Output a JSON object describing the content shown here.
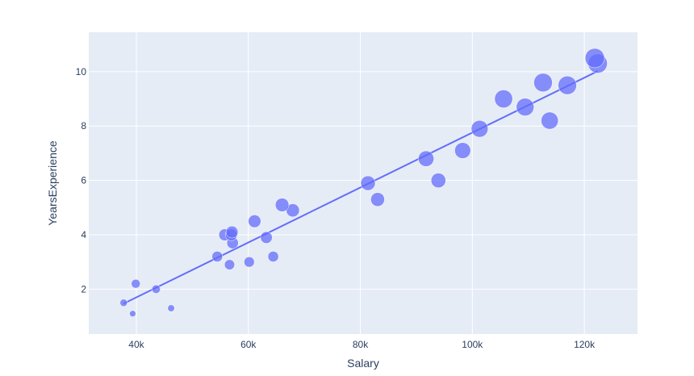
{
  "chart_data": {
    "type": "scatter",
    "title": "",
    "xlabel": "Salary",
    "ylabel": "YearsExperience",
    "xlim": [
      31500,
      129500
    ],
    "ylim": [
      0.35,
      11.45
    ],
    "x_ticks": [
      40000,
      60000,
      80000,
      100000,
      120000
    ],
    "x_tick_labels": [
      "40k",
      "60k",
      "80k",
      "100k",
      "120k"
    ],
    "y_ticks": [
      2,
      4,
      6,
      8,
      10
    ],
    "y_tick_labels": [
      "2",
      "4",
      "6",
      "8",
      "10"
    ],
    "grid": true,
    "background_color": "#e5ecf6",
    "marker_color": "#636efa",
    "marker_size_encodes": "YearsExperience",
    "points": [
      {
        "x": 39343,
        "y": 1.1
      },
      {
        "x": 46205,
        "y": 1.3
      },
      {
        "x": 37731,
        "y": 1.5
      },
      {
        "x": 43525,
        "y": 2.0
      },
      {
        "x": 39891,
        "y": 2.2
      },
      {
        "x": 56642,
        "y": 2.9
      },
      {
        "x": 60150,
        "y": 3.0
      },
      {
        "x": 54445,
        "y": 3.2
      },
      {
        "x": 64445,
        "y": 3.2
      },
      {
        "x": 57189,
        "y": 3.7
      },
      {
        "x": 63218,
        "y": 3.9
      },
      {
        "x": 55794,
        "y": 4.0
      },
      {
        "x": 56957,
        "y": 4.0
      },
      {
        "x": 57081,
        "y": 4.1
      },
      {
        "x": 61111,
        "y": 4.5
      },
      {
        "x": 67938,
        "y": 4.9
      },
      {
        "x": 66029,
        "y": 5.1
      },
      {
        "x": 83088,
        "y": 5.3
      },
      {
        "x": 81363,
        "y": 5.9
      },
      {
        "x": 93940,
        "y": 6.0
      },
      {
        "x": 91738,
        "y": 6.8
      },
      {
        "x": 98273,
        "y": 7.1
      },
      {
        "x": 101302,
        "y": 7.9
      },
      {
        "x": 113812,
        "y": 8.2
      },
      {
        "x": 109431,
        "y": 8.7
      },
      {
        "x": 105582,
        "y": 9.0
      },
      {
        "x": 116969,
        "y": 9.5
      },
      {
        "x": 112635,
        "y": 9.6
      },
      {
        "x": 122391,
        "y": 10.3
      },
      {
        "x": 121872,
        "y": 10.5
      }
    ],
    "trendline": {
      "x": [
        37731,
        122391
      ],
      "y": [
        1.47,
        10.02
      ],
      "color": "#636efa"
    }
  }
}
